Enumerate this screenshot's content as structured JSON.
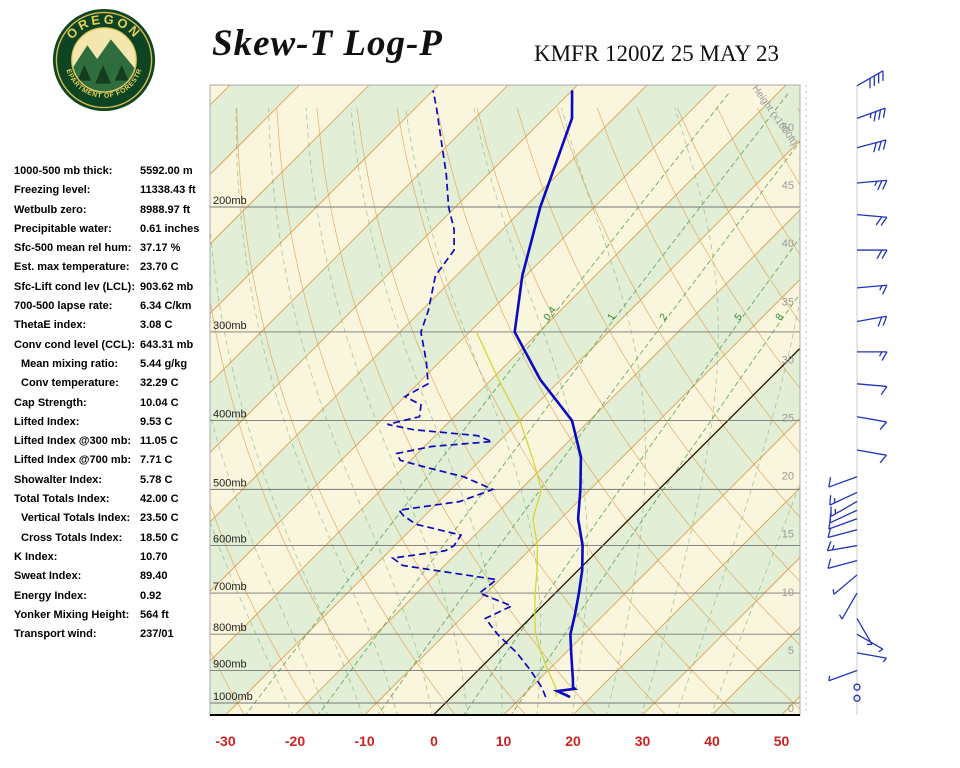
{
  "header": {
    "title": "Skew-T Log-P",
    "station_time": "KMFR 1200Z 25 MAY 23",
    "logo_top": "OREGON",
    "logo_bottom": "DEPARTMENT OF FORESTRY"
  },
  "indices": [
    {
      "label": "1000-500 mb thick:",
      "value": "5592.00 m",
      "indent": false
    },
    {
      "label": "Freezing level:",
      "value": "11338.43 ft",
      "indent": false
    },
    {
      "label": "Wetbulb zero:",
      "value": "8988.97 ft",
      "indent": false
    },
    {
      "label": "Precipitable water:",
      "value": "0.61 inches",
      "indent": false
    },
    {
      "label": "Sfc-500 mean rel hum:",
      "value": "37.17 %",
      "indent": false
    },
    {
      "label": "Est. max temperature:",
      "value": "23.70 C",
      "indent": false
    },
    {
      "label": "Sfc-Lift cond lev (LCL):",
      "value": "903.62 mb",
      "indent": false
    },
    {
      "label": "700-500 lapse rate:",
      "value": "6.34 C/km",
      "indent": false
    },
    {
      "label": "ThetaE index:",
      "value": "3.08 C",
      "indent": false
    },
    {
      "label": "Conv cond level (CCL):",
      "value": "643.31 mb",
      "indent": false
    },
    {
      "label": "Mean mixing ratio:",
      "value": "5.44 g/kg",
      "indent": true
    },
    {
      "label": "Conv temperature:",
      "value": "32.29 C",
      "indent": true
    },
    {
      "label": "Cap Strength:",
      "value": "10.04 C",
      "indent": false
    },
    {
      "label": "Lifted Index:",
      "value": "9.53 C",
      "indent": false
    },
    {
      "label": "Lifted Index @300 mb:",
      "value": "11.05 C",
      "indent": false
    },
    {
      "label": "Lifted Index @700 mb:",
      "value": "7.71 C",
      "indent": false
    },
    {
      "label": "Showalter Index:",
      "value": "5.78 C",
      "indent": false
    },
    {
      "label": "Total Totals Index:",
      "value": "42.00 C",
      "indent": false
    },
    {
      "label": "Vertical Totals Index:",
      "value": "23.50 C",
      "indent": true
    },
    {
      "label": "Cross Totals Index:",
      "value": "18.50 C",
      "indent": true
    },
    {
      "label": "K Index:",
      "value": "10.70",
      "indent": false
    },
    {
      "label": "Sweat Index:",
      "value": "89.40",
      "indent": false
    },
    {
      "label": "Energy Index:",
      "value": "0.92",
      "indent": false
    },
    {
      "label": "Yonker Mixing Height:",
      "value": "564 ft",
      "indent": false
    },
    {
      "label": "Transport wind:",
      "value": "237/01",
      "indent": false
    }
  ],
  "chart_data": {
    "type": "line",
    "title": "Skew-T Log-P",
    "subtitle": "KMFR 1200Z 25 MAY 23",
    "x_axis": {
      "unit": "C",
      "ticks": [
        -30,
        -20,
        -10,
        0,
        10,
        20,
        30,
        40,
        50
      ]
    },
    "y_axis": {
      "unit": "mb",
      "scale": "log",
      "range": [
        1042,
        135
      ]
    },
    "pressure_levels_mb": [
      200,
      300,
      400,
      500,
      600,
      700,
      800,
      900,
      1000
    ],
    "height_axis_label": "Height (x1000ft)",
    "height_ticks_kft": [
      50,
      45,
      40,
      35,
      30,
      25,
      20,
      15,
      10,
      5,
      0
    ],
    "mixing_ratio_g_kg": [
      0.4,
      1,
      2,
      5,
      8
    ],
    "series": [
      {
        "name": "temperature",
        "style": "solid",
        "points": [
          [
            981,
            17
          ],
          [
            962,
            14.3
          ],
          [
            955,
            16.5
          ],
          [
            950,
            16
          ],
          [
            925,
            14.8
          ],
          [
            900,
            13.5
          ],
          [
            850,
            10.8
          ],
          [
            800,
            8
          ],
          [
            750,
            5.8
          ],
          [
            700,
            3.3
          ],
          [
            650,
            0.5
          ],
          [
            600,
            -3
          ],
          [
            550,
            -7.5
          ],
          [
            500,
            -11.4
          ],
          [
            450,
            -16
          ],
          [
            400,
            -22.5
          ],
          [
            350,
            -33
          ],
          [
            300,
            -43.5
          ],
          [
            250,
            -50.5
          ],
          [
            200,
            -57.8
          ],
          [
            150,
            -66
          ],
          [
            137,
            -70
          ]
        ]
      },
      {
        "name": "dewpoint",
        "style": "dashed",
        "points": [
          [
            981,
            13.5
          ],
          [
            950,
            11.5
          ],
          [
            900,
            7.5
          ],
          [
            850,
            3
          ],
          [
            800,
            -2.5
          ],
          [
            760,
            -6.5
          ],
          [
            730,
            -4.5
          ],
          [
            700,
            -11
          ],
          [
            670,
            -10.5
          ],
          [
            640,
            -26
          ],
          [
            625,
            -28.5
          ],
          [
            610,
            -22
          ],
          [
            600,
            -21.5
          ],
          [
            580,
            -22
          ],
          [
            560,
            -30
          ],
          [
            545,
            -33
          ],
          [
            535,
            -34.5
          ],
          [
            520,
            -27
          ],
          [
            500,
            -24
          ],
          [
            480,
            -30
          ],
          [
            465,
            -37
          ],
          [
            455,
            -41.5
          ],
          [
            445,
            -43
          ],
          [
            435,
            -39
          ],
          [
            428,
            -31
          ],
          [
            420,
            -34
          ],
          [
            412,
            -44
          ],
          [
            405,
            -48.5
          ],
          [
            395,
            -45
          ],
          [
            380,
            -46.5
          ],
          [
            370,
            -50
          ],
          [
            355,
            -48.5
          ],
          [
            330,
            -52
          ],
          [
            300,
            -57
          ],
          [
            280,
            -59
          ],
          [
            250,
            -63
          ],
          [
            230,
            -64
          ],
          [
            215,
            -67
          ],
          [
            200,
            -71
          ],
          [
            180,
            -76
          ],
          [
            160,
            -82
          ],
          [
            145,
            -87
          ],
          [
            137,
            -90
          ]
        ]
      },
      {
        "name": "wetbulb",
        "style": "solid",
        "points": [
          [
            981,
            15
          ],
          [
            950,
            13.5
          ],
          [
            900,
            10
          ],
          [
            850,
            6.5
          ],
          [
            800,
            3
          ],
          [
            750,
            0
          ],
          [
            700,
            -3
          ],
          [
            650,
            -6
          ],
          [
            600,
            -9.5
          ],
          [
            550,
            -14
          ],
          [
            500,
            -17
          ],
          [
            450,
            -23
          ],
          [
            400,
            -30
          ],
          [
            350,
            -39
          ],
          [
            300,
            -49
          ]
        ]
      }
    ],
    "wind_barbs": [
      {
        "p": 135,
        "dir": 60,
        "spd": 40
      },
      {
        "p": 150,
        "dir": 70,
        "spd": 35
      },
      {
        "p": 165,
        "dir": 75,
        "spd": 30
      },
      {
        "p": 185,
        "dir": 85,
        "spd": 25
      },
      {
        "p": 205,
        "dir": 95,
        "spd": 20
      },
      {
        "p": 230,
        "dir": 90,
        "spd": 20
      },
      {
        "p": 260,
        "dir": 85,
        "spd": 15
      },
      {
        "p": 290,
        "dir": 80,
        "spd": 20
      },
      {
        "p": 320,
        "dir": 90,
        "spd": 15
      },
      {
        "p": 355,
        "dir": 95,
        "spd": 10
      },
      {
        "p": 395,
        "dir": 100,
        "spd": 10
      },
      {
        "p": 440,
        "dir": 100,
        "spd": 10
      },
      {
        "p": 480,
        "dir": 250,
        "spd": 10
      },
      {
        "p": 505,
        "dir": 245,
        "spd": 15
      },
      {
        "p": 520,
        "dir": 240,
        "spd": 15
      },
      {
        "p": 535,
        "dir": 245,
        "spd": 10
      },
      {
        "p": 550,
        "dir": 250,
        "spd": 10
      },
      {
        "p": 570,
        "dir": 255,
        "spd": 10
      },
      {
        "p": 600,
        "dir": 260,
        "spd": 15
      },
      {
        "p": 630,
        "dir": 255,
        "spd": 10
      },
      {
        "p": 660,
        "dir": 230,
        "spd": 5
      },
      {
        "p": 700,
        "dir": 210,
        "spd": 5
      },
      {
        "p": 760,
        "dir": 150,
        "spd": 5
      },
      {
        "p": 800,
        "dir": 120,
        "spd": 5
      },
      {
        "p": 850,
        "dir": 100,
        "spd": 3
      },
      {
        "p": 900,
        "dir": 250,
        "spd": 3
      },
      {
        "p": 950,
        "dir": 230,
        "spd": 2
      },
      {
        "p": 985,
        "dir": 237,
        "spd": 1
      }
    ],
    "colors": {
      "axis_red": "#cc2222",
      "trace_blue": "#0a0ac0",
      "wetbulb_yellow": "#d6d632",
      "grid_orange": "#dd9a45",
      "mix_green": "#4f9e4f",
      "moist_green": "#69a869",
      "band_green": "#e3eed6",
      "band_cream": "#faf5dd",
      "barb_blue": "#2233bb"
    }
  }
}
